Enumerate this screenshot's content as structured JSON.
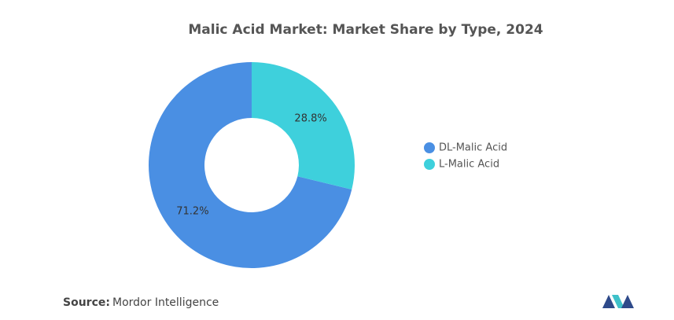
{
  "chart_data": {
    "type": "donut",
    "title": "Malic Acid Market: Market Share by Type, 2024",
    "series": [
      {
        "name": "DL-Malic Acid",
        "color": "#4a8fe3",
        "values": [
          71.2
        ],
        "value_labels": [
          "71.2%"
        ]
      },
      {
        "name": "L-Malic Acid",
        "color": "#3ed0dc",
        "values": [
          28.8
        ],
        "value_labels": [
          "28.8%"
        ]
      }
    ],
    "legend": "right",
    "source_label": "Source:",
    "source": "Mordor Intelligence"
  }
}
